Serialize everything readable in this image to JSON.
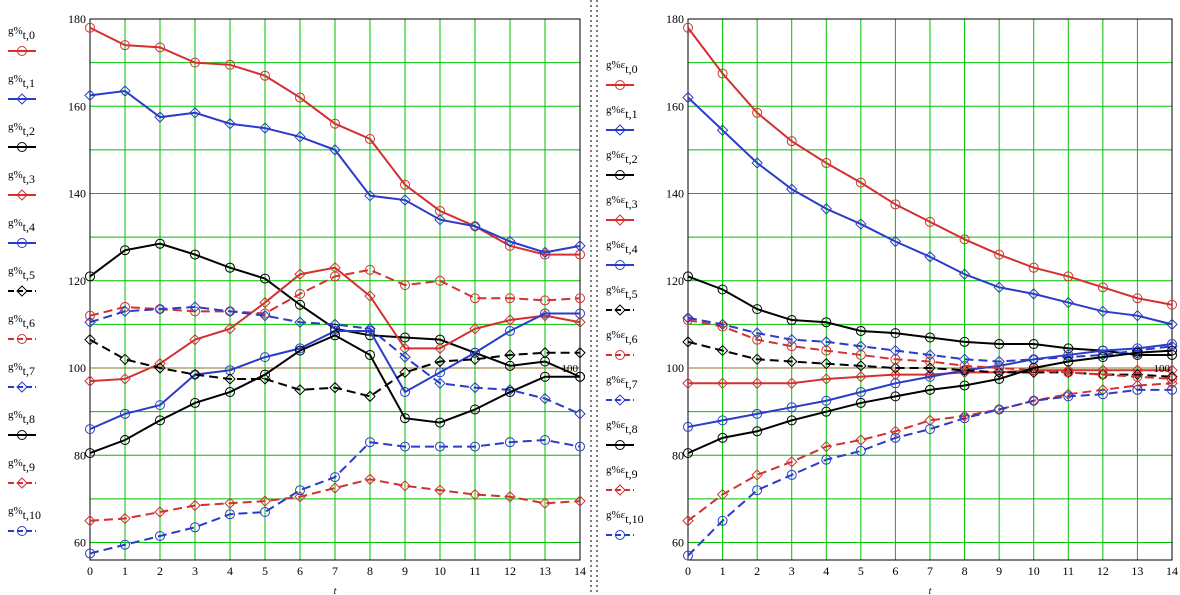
{
  "colors": {
    "grid": "#00c000",
    "reference": "#e04040",
    "red": "#d43030",
    "blue": "#2a3cc8",
    "black": "#000000"
  },
  "chart_data": [
    {
      "type": "line",
      "title": "",
      "xlabel": "t",
      "ylabel": "",
      "xlim": [
        0,
        14
      ],
      "ylim": [
        56,
        180
      ],
      "x_ticks": [
        "0",
        "1",
        "2",
        "3",
        "4",
        "5",
        "6",
        "7",
        "8",
        "9",
        "10",
        "11",
        "12",
        "13",
        "14"
      ],
      "y_ticks": [
        "60",
        "80",
        "100",
        "120",
        "140",
        "160",
        "180"
      ],
      "grid": true,
      "legend_position": "left",
      "reference_line": {
        "value": 100,
        "label": "100"
      },
      "x": [
        0,
        1,
        2,
        3,
        4,
        5,
        6,
        7,
        8,
        9,
        10,
        11,
        12,
        13,
        14
      ],
      "series": [
        {
          "name": "g%t,0",
          "base": "g%",
          "sub": "t,0",
          "color": "red",
          "dash": false,
          "values": [
            178,
            174,
            173.5,
            170,
            169.5,
            167,
            162,
            156,
            152.5,
            142,
            136,
            132.5,
            128,
            126,
            126
          ]
        },
        {
          "name": "g%t,1",
          "base": "g%",
          "sub": "t,1",
          "color": "blue",
          "dash": false,
          "values": [
            162.5,
            163.5,
            157.5,
            158.5,
            156,
            155,
            153,
            150,
            139.5,
            138.5,
            134,
            132.5,
            129,
            126.5,
            128
          ]
        },
        {
          "name": "g%t,2",
          "base": "g%",
          "sub": "t,2",
          "color": "black",
          "dash": false,
          "values": [
            121,
            127,
            128.5,
            126,
            123,
            120.5,
            114.5,
            109,
            107.5,
            107,
            106.5,
            103.5,
            100.5,
            101.5,
            98
          ]
        },
        {
          "name": "g%t,3",
          "base": "g%",
          "sub": "t,3",
          "color": "red",
          "dash": false,
          "values": [
            97,
            97.5,
            101,
            106.5,
            109,
            115,
            121.5,
            123,
            116.5,
            104.5,
            104.5,
            109,
            111,
            112,
            110.5
          ]
        },
        {
          "name": "g%t,4",
          "base": "g%",
          "sub": "t,4",
          "color": "blue",
          "dash": false,
          "values": [
            86,
            89.5,
            91.5,
            98.5,
            99.5,
            102.5,
            104.5,
            108.5,
            108.5,
            94.5,
            99,
            103.5,
            108.5,
            112.5,
            112.5
          ]
        },
        {
          "name": "g%t,5",
          "base": "g%",
          "sub": "t,5",
          "color": "black",
          "dash": true,
          "values": [
            106.5,
            102,
            100,
            98.5,
            97.5,
            97.5,
            95,
            95.5,
            93.5,
            99,
            101.5,
            102,
            103,
            103.5,
            103.5
          ]
        },
        {
          "name": "g%t,6",
          "base": "g%",
          "sub": "t,6",
          "color": "red",
          "dash": true,
          "values": [
            112,
            114,
            113.5,
            113,
            113,
            112.5,
            117,
            121,
            122.5,
            119,
            120,
            116,
            116,
            115.5,
            116
          ]
        },
        {
          "name": "g%t,7",
          "base": "g%",
          "sub": "t,7",
          "color": "blue",
          "dash": true,
          "values": [
            110.5,
            113,
            113.5,
            114,
            113,
            112,
            110.5,
            110,
            109,
            102.5,
            96.5,
            95.5,
            95,
            93,
            89.5
          ]
        },
        {
          "name": "g%t,8",
          "base": "g%",
          "sub": "t,8",
          "color": "black",
          "dash": false,
          "values": [
            80.5,
            83.5,
            88,
            92,
            94.5,
            98.5,
            104,
            107.5,
            103,
            88.5,
            87.5,
            90.5,
            94.5,
            98,
            98
          ]
        },
        {
          "name": "g%t,9",
          "base": "g%",
          "sub": "t,9",
          "color": "red",
          "dash": true,
          "values": [
            65,
            65.5,
            67,
            68.5,
            69,
            69.5,
            70.5,
            72.5,
            74.5,
            73,
            72,
            71,
            70.5,
            69,
            69.5
          ]
        },
        {
          "name": "g%t,10",
          "base": "g%",
          "sub": "t,10",
          "color": "blue",
          "dash": true,
          "values": [
            57.5,
            59.5,
            61.5,
            63.5,
            66.5,
            67,
            72,
            75,
            83,
            82,
            82,
            82,
            83,
            83.5,
            82
          ]
        }
      ]
    },
    {
      "type": "line",
      "title": "",
      "xlabel": "t",
      "ylabel": "",
      "xlim": [
        0,
        14
      ],
      "ylim": [
        56,
        180
      ],
      "x_ticks": [
        "0",
        "1",
        "2",
        "3",
        "4",
        "5",
        "6",
        "7",
        "8",
        "9",
        "10",
        "11",
        "12",
        "13",
        "14"
      ],
      "y_ticks": [
        "60",
        "80",
        "100",
        "120",
        "140",
        "160",
        "180"
      ],
      "grid": true,
      "legend_position": "left",
      "reference_line": {
        "value": 100,
        "label": "100"
      },
      "x": [
        0,
        1,
        2,
        3,
        4,
        5,
        6,
        7,
        8,
        9,
        10,
        11,
        12,
        13,
        14
      ],
      "series": [
        {
          "name": "g%εt,0",
          "base": "g%ε",
          "sub": "t,0",
          "color": "red",
          "dash": false,
          "values": [
            178,
            167.5,
            158.5,
            152,
            147,
            142.5,
            137.5,
            133.5,
            129.5,
            126,
            123,
            121,
            118.5,
            116,
            114.5
          ]
        },
        {
          "name": "g%εt,1",
          "base": "g%ε",
          "sub": "t,1",
          "color": "blue",
          "dash": false,
          "values": [
            162,
            154.5,
            147,
            141,
            136.5,
            133,
            129,
            125.5,
            121.5,
            118.5,
            117,
            115,
            113,
            112,
            110
          ]
        },
        {
          "name": "g%εt,2",
          "base": "g%ε",
          "sub": "t,2",
          "color": "black",
          "dash": false,
          "values": [
            121,
            118,
            113.5,
            111,
            110.5,
            108.5,
            108,
            107,
            106,
            105.5,
            105.5,
            104.5,
            104,
            103,
            103
          ]
        },
        {
          "name": "g%εt,3",
          "base": "g%ε",
          "sub": "t,3",
          "color": "red",
          "dash": false,
          "values": [
            96.5,
            96.5,
            96.5,
            96.5,
            97.5,
            98,
            98.5,
            98.5,
            99,
            99,
            99.5,
            99.5,
            99.5,
            99.5,
            99.5
          ]
        },
        {
          "name": "g%εt,4",
          "base": "g%ε",
          "sub": "t,4",
          "color": "blue",
          "dash": false,
          "values": [
            86.5,
            88,
            89.5,
            91,
            92.5,
            94.5,
            96.5,
            98,
            99.5,
            100.5,
            102,
            103,
            104,
            104.5,
            105.5
          ]
        },
        {
          "name": "g%εt,5",
          "base": "g%ε",
          "sub": "t,5",
          "color": "black",
          "dash": true,
          "values": [
            106,
            104,
            102,
            101.5,
            101,
            100.5,
            100,
            100,
            99.5,
            99,
            99,
            99,
            98.5,
            98.5,
            98
          ]
        },
        {
          "name": "g%εt,6",
          "base": "g%ε",
          "sub": "t,6",
          "color": "red",
          "dash": true,
          "values": [
            111,
            109.5,
            106.5,
            105,
            104,
            103,
            102,
            101.5,
            100.5,
            100,
            99.5,
            99,
            98.5,
            98,
            97.5
          ]
        },
        {
          "name": "g%εt,7",
          "base": "g%ε",
          "sub": "t,7",
          "color": "blue",
          "dash": true,
          "values": [
            111.5,
            110,
            108,
            106.5,
            106,
            105,
            104,
            103,
            102,
            101.5,
            102,
            102.5,
            103,
            104,
            105
          ]
        },
        {
          "name": "g%εt,8",
          "base": "g%ε",
          "sub": "t,8",
          "color": "black",
          "dash": false,
          "values": [
            80.5,
            84,
            85.5,
            88,
            90,
            92,
            93.5,
            95,
            96,
            97.5,
            100,
            101.5,
            102.5,
            103.5,
            104
          ]
        },
        {
          "name": "g%εt,9",
          "base": "g%ε",
          "sub": "t,9",
          "color": "red",
          "dash": true,
          "values": [
            65,
            71,
            75.5,
            78.5,
            82,
            83.5,
            85.5,
            88,
            89,
            90.5,
            92.5,
            94,
            95,
            96,
            96.5
          ]
        },
        {
          "name": "g%εt,10",
          "base": "g%ε",
          "sub": "t,10",
          "color": "blue",
          "dash": true,
          "values": [
            57,
            65,
            72,
            75.5,
            79,
            81,
            84,
            86,
            88.5,
            90.5,
            92.5,
            93.5,
            94,
            95,
            95
          ]
        }
      ]
    }
  ]
}
